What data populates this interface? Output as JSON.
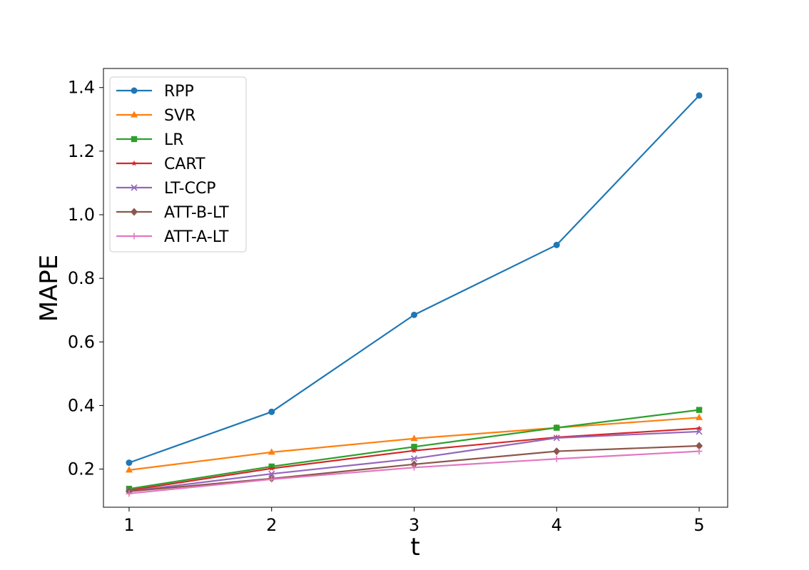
{
  "chart_data": {
    "type": "line",
    "title": "",
    "xlabel": "t",
    "ylabel": "MAPE",
    "x": [
      1,
      2,
      3,
      4,
      5
    ],
    "xlim": [
      0.82,
      5.2
    ],
    "ylim": [
      0.08,
      1.46
    ],
    "xticks": [
      1,
      2,
      3,
      4,
      5
    ],
    "yticks": [
      0.2,
      0.4,
      0.6,
      0.8,
      1.0,
      1.2,
      1.4
    ],
    "ytick_labels": [
      "0.2",
      "0.4",
      "0.6",
      "0.8",
      "1.0",
      "1.2",
      "1.4"
    ],
    "grid": false,
    "legend_position": "top-left",
    "series": [
      {
        "name": "RPP",
        "color": "#1f77b4",
        "marker": "circle",
        "values": [
          0.22,
          0.38,
          0.685,
          0.905,
          1.375
        ]
      },
      {
        "name": "SVR",
        "color": "#ff7f0e",
        "marker": "triangle",
        "values": [
          0.197,
          0.253,
          0.296,
          0.33,
          0.362
        ]
      },
      {
        "name": "LR",
        "color": "#2ca02c",
        "marker": "square",
        "values": [
          0.138,
          0.208,
          0.27,
          0.33,
          0.386
        ]
      },
      {
        "name": "CART",
        "color": "#d62728",
        "marker": "star",
        "values": [
          0.133,
          0.202,
          0.258,
          0.3,
          0.328
        ]
      },
      {
        "name": "LT-CCP",
        "color": "#9467bd",
        "marker": "x",
        "values": [
          0.13,
          0.185,
          0.233,
          0.298,
          0.318
        ]
      },
      {
        "name": "ATT-B-LT",
        "color": "#8c564b",
        "marker": "diamond",
        "values": [
          0.13,
          0.17,
          0.215,
          0.256,
          0.273
        ]
      },
      {
        "name": "ATT-A-LT",
        "color": "#e377c2",
        "marker": "plus",
        "values": [
          0.123,
          0.168,
          0.205,
          0.232,
          0.256
        ]
      }
    ]
  }
}
